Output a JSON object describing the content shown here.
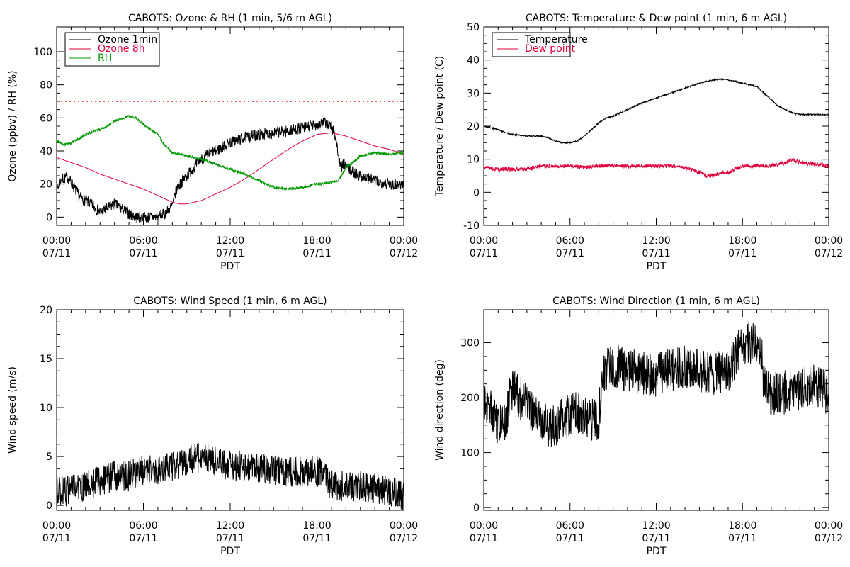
{
  "chart_data": [
    {
      "type": "line",
      "title": "CABOTS: Ozone & RH (1 min, 5/6 m AGL)",
      "xlabel": "PDT",
      "ylabel": "Ozone (ppbv) / RH (%)",
      "xlim": [
        0,
        24
      ],
      "ylim": [
        -5,
        115
      ],
      "yticks": [
        0,
        20,
        40,
        60,
        80,
        100
      ],
      "xticks": [
        {
          "t": 0,
          "time": "00:00",
          "date": "07/11"
        },
        {
          "t": 6,
          "time": "06:00",
          "date": "07/11"
        },
        {
          "t": 12,
          "time": "12:00",
          "date": "07/11"
        },
        {
          "t": 18,
          "time": "18:00",
          "date": "07/11"
        },
        {
          "t": 24,
          "time": "00:00",
          "date": "07/12"
        }
      ],
      "legend": {
        "placement": "top-left"
      },
      "reference_line": {
        "y": 70,
        "color": "#e00000",
        "style": "dotted"
      },
      "series": [
        {
          "name": "Ozone 1min",
          "color": "#000000",
          "noise": 3.5,
          "x": [
            0,
            0.3,
            0.8,
            1.2,
            1.6,
            2,
            2.5,
            3,
            3.5,
            4,
            4.5,
            5,
            5.5,
            6,
            6.5,
            7,
            7.5,
            8,
            8.3,
            8.7,
            9,
            9.5,
            10,
            10.5,
            11,
            12,
            13,
            14,
            15,
            16,
            17,
            17.5,
            18,
            18.5,
            19,
            19.3,
            19.6,
            19.9,
            20.3,
            21,
            22,
            23,
            23.5,
            24
          ],
          "y": [
            16,
            23,
            24,
            18,
            12,
            10,
            7,
            3,
            5,
            8,
            5,
            2,
            0,
            0,
            0,
            0,
            2,
            7,
            17,
            22,
            25,
            30,
            35,
            38,
            40,
            45,
            48,
            50,
            51,
            52,
            54,
            55,
            56,
            57,
            55,
            48,
            30,
            32,
            28,
            25,
            22,
            20,
            20,
            20
          ]
        },
        {
          "name": "Ozone 8h",
          "color": "#e0003c",
          "noise": 0,
          "x": [
            0,
            1,
            2,
            3,
            4,
            5,
            6,
            7,
            7.5,
            8,
            8.5,
            9,
            10,
            11,
            12,
            13,
            14,
            15,
            16,
            17,
            18,
            19,
            20,
            21,
            22,
            23,
            24
          ],
          "y": [
            36,
            33,
            30,
            26,
            23,
            20,
            17,
            13,
            11,
            9,
            8,
            8,
            10,
            14,
            18,
            23,
            29,
            35,
            41,
            46,
            50,
            51,
            49,
            46,
            43,
            41,
            38
          ]
        },
        {
          "name": "RH",
          "color": "#009900",
          "noise": 0.8,
          "x": [
            0,
            0.5,
            1,
            1.5,
            2,
            3,
            3.5,
            4,
            5,
            5.5,
            6,
            6.5,
            7,
            7.5,
            8,
            8.5,
            9,
            10,
            11,
            12,
            13,
            14,
            15,
            16,
            17,
            18,
            19,
            19.5,
            20,
            20.5,
            21,
            22,
            23,
            24
          ],
          "y": [
            46,
            44,
            45,
            47,
            50,
            53,
            55,
            58,
            61,
            60,
            56,
            53,
            50,
            43,
            39,
            38,
            37,
            35,
            32,
            29,
            26,
            22,
            18,
            17,
            18,
            20,
            21,
            22,
            30,
            33,
            37,
            39,
            38,
            39
          ]
        }
      ]
    },
    {
      "type": "line",
      "title": "CABOTS: Temperature & Dew point (1 min, 6 m AGL)",
      "xlabel": "PDT",
      "ylabel": "Temperature / Dew point (C)",
      "xlim": [
        0,
        24
      ],
      "ylim": [
        -10,
        50
      ],
      "yticks": [
        -10,
        0,
        10,
        20,
        30,
        40,
        50
      ],
      "xticks": [
        {
          "t": 0,
          "time": "00:00",
          "date": "07/11"
        },
        {
          "t": 6,
          "time": "06:00",
          "date": "07/11"
        },
        {
          "t": 12,
          "time": "12:00",
          "date": "07/11"
        },
        {
          "t": 18,
          "time": "18:00",
          "date": "07/11"
        },
        {
          "t": 24,
          "time": "00:00",
          "date": "07/12"
        }
      ],
      "legend": {
        "placement": "top-left"
      },
      "series": [
        {
          "name": "Temperature",
          "color": "#000000",
          "noise": 0.2,
          "x": [
            0,
            0.5,
            1,
            1.5,
            2,
            3,
            4,
            4.5,
            5,
            5.5,
            6,
            6.5,
            7,
            7.5,
            8,
            8.5,
            9,
            10,
            11,
            12,
            13,
            14,
            15,
            16,
            16.5,
            17,
            17.5,
            18,
            19,
            20,
            20.5,
            21,
            21.5,
            22,
            23,
            24
          ],
          "y": [
            20,
            19.5,
            19,
            18,
            17.5,
            17,
            17,
            16.5,
            15.5,
            15,
            15,
            15.5,
            17,
            19,
            21,
            22.5,
            23,
            25,
            27,
            28.5,
            30,
            31.5,
            33,
            34,
            34.2,
            34,
            33.5,
            33,
            32,
            28,
            26,
            25,
            24,
            23.5,
            23.5,
            23.5
          ]
        },
        {
          "name": "Dew point",
          "color": "#e0003c",
          "noise": 0.6,
          "x": [
            0,
            1,
            2,
            3,
            4,
            5,
            6,
            7,
            8,
            9,
            10,
            11,
            12,
            13,
            14,
            15,
            15.5,
            16,
            16.5,
            17,
            18,
            19,
            20,
            21,
            21.5,
            22,
            23,
            24
          ],
          "y": [
            7.5,
            7,
            7,
            7,
            8,
            8,
            8,
            7.5,
            8,
            8,
            8,
            8,
            8,
            8,
            7.5,
            6,
            5,
            5,
            6,
            6,
            8,
            8,
            8,
            9,
            10,
            9,
            8.5,
            8
          ]
        }
      ]
    },
    {
      "type": "line",
      "title": "CABOTS: Wind Speed (1 min, 6 m AGL)",
      "xlabel": "PDT",
      "ylabel": "Wind speed (m/s)",
      "xlim": [
        0,
        24
      ],
      "ylim": [
        -0.5,
        20
      ],
      "yticks": [
        0,
        5,
        10,
        15,
        20
      ],
      "xticks": [
        {
          "t": 0,
          "time": "00:00",
          "date": "07/11"
        },
        {
          "t": 6,
          "time": "06:00",
          "date": "07/11"
        },
        {
          "t": 12,
          "time": "12:00",
          "date": "07/11"
        },
        {
          "t": 18,
          "time": "18:00",
          "date": "07/11"
        },
        {
          "t": 24,
          "time": "00:00",
          "date": "07/12"
        }
      ],
      "series": [
        {
          "name": "",
          "color": "#000000",
          "noise": 1.6,
          "x": [
            0,
            1,
            2,
            3,
            4,
            5,
            6,
            7,
            8,
            9,
            10,
            11,
            12,
            13,
            14,
            15,
            16,
            17,
            18,
            18.5,
            19,
            20,
            21,
            22,
            23,
            24
          ],
          "y": [
            1.5,
            1.5,
            2,
            2.5,
            3,
            3,
            3.5,
            3.5,
            4,
            4.5,
            5,
            4.5,
            4,
            4,
            3.8,
            3.5,
            3.5,
            3.5,
            3.5,
            3,
            2,
            2,
            2,
            1.8,
            1.5,
            1
          ]
        }
      ]
    },
    {
      "type": "line",
      "title": "CABOTS: Wind Direction (1 min, 6 m AGL)",
      "xlabel": "PDT",
      "ylabel": "Wind direction (deg)",
      "xlim": [
        0,
        24
      ],
      "ylim": [
        -5,
        360
      ],
      "yticks": [
        0,
        100,
        200,
        300
      ],
      "xticks": [
        {
          "t": 0,
          "time": "00:00",
          "date": "07/11"
        },
        {
          "t": 6,
          "time": "06:00",
          "date": "07/11"
        },
        {
          "t": 12,
          "time": "12:00",
          "date": "07/11"
        },
        {
          "t": 18,
          "time": "18:00",
          "date": "07/11"
        },
        {
          "t": 24,
          "time": "00:00",
          "date": "07/12"
        }
      ],
      "series": [
        {
          "name": "",
          "color": "#000000",
          "noise": 40,
          "x": [
            0,
            0.5,
            1,
            1.5,
            2,
            2.5,
            3,
            3.5,
            4,
            5,
            6,
            7,
            7.5,
            8,
            8.2,
            8.5,
            9,
            10,
            11,
            12,
            13,
            14,
            15,
            16,
            17,
            18,
            19,
            19.3,
            19.5,
            20,
            21,
            22,
            23,
            24
          ],
          "y": [
            200,
            180,
            150,
            160,
            220,
            200,
            190,
            170,
            150,
            150,
            170,
            170,
            160,
            160,
            240,
            250,
            260,
            250,
            245,
            240,
            250,
            255,
            250,
            245,
            250,
            300,
            300,
            290,
            220,
            205,
            210,
            215,
            225,
            205
          ]
        }
      ]
    }
  ]
}
